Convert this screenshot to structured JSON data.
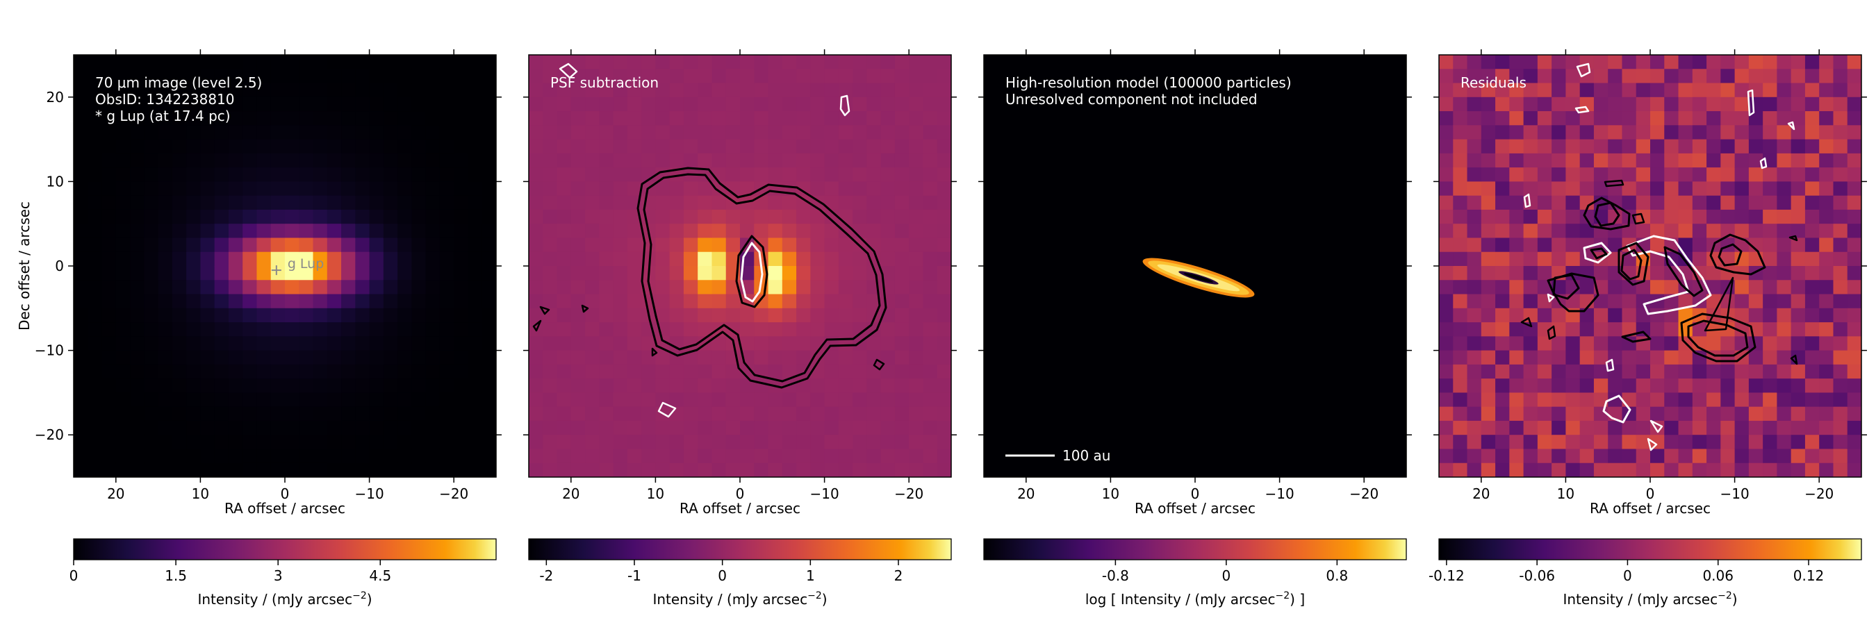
{
  "chart_data": [
    {
      "type": "heatmap",
      "annotation_lines": [
        "70 μm image (level 2.5)",
        "ObsID: 1342238810",
        "* g Lup (at 17.4 pc)"
      ],
      "star_label": "g Lup",
      "star_position": [
        1,
        -0.5
      ],
      "xlabel": "RA offset / arcsec",
      "ylabel": "Dec offset / arcsec",
      "xlim": [
        25,
        -25
      ],
      "ylim": [
        -25,
        25
      ],
      "xticks": [
        20,
        10,
        0,
        -10,
        -20
      ],
      "yticks": [
        20,
        10,
        0,
        -10,
        -20
      ],
      "colormap": "inferno",
      "colorbar": {
        "label": "Intensity / (mJy arcsec",
        "label_exp": "−2",
        "label_suffix": ")",
        "range": [
          0,
          6.2
        ],
        "ticks": [
          0,
          1.5,
          3,
          4.5
        ],
        "tick_labels": [
          "0",
          "1.5",
          "3",
          "4.5"
        ]
      }
    },
    {
      "type": "heatmap",
      "annotation_lines": [
        "PSF subtraction"
      ],
      "xlabel": "RA offset / arcsec",
      "xlim": [
        25,
        -25
      ],
      "ylim": [
        -25,
        25
      ],
      "xticks": [
        20,
        10,
        0,
        -10,
        -20
      ],
      "contours": true,
      "colormap": "inferno",
      "colorbar": {
        "label": "Intensity / (mJy arcsec",
        "label_exp": "−2",
        "label_suffix": ")",
        "range": [
          -2.2,
          2.6
        ],
        "ticks": [
          -2,
          -1,
          0,
          1,
          2
        ],
        "tick_labels": [
          "-2",
          "-1",
          "0",
          "1",
          "2"
        ]
      }
    },
    {
      "type": "heatmap",
      "annotation_lines": [
        "High-resolution model (100000 particles)",
        "Unresolved component not included"
      ],
      "scalebar_label": "100 au",
      "xlabel": "RA offset / arcsec",
      "xlim": [
        25,
        -25
      ],
      "ylim": [
        -25,
        25
      ],
      "xticks": [
        20,
        10,
        0,
        -10,
        -20
      ],
      "colormap": "inferno",
      "colorbar": {
        "label": "log [ Intensity / (mJy arcsec",
        "label_exp": "−2",
        "label_suffix": ") ]",
        "range": [
          -1.75,
          1.3
        ],
        "ticks": [
          -0.8,
          0,
          0.8
        ],
        "tick_labels": [
          "-0.8",
          "0",
          "0.8"
        ]
      }
    },
    {
      "type": "heatmap",
      "annotation_lines": [
        "Residuals"
      ],
      "xlabel": "RA offset / arcsec",
      "xlim": [
        25,
        -25
      ],
      "ylim": [
        -25,
        25
      ],
      "xticks": [
        20,
        10,
        0,
        -10,
        -20
      ],
      "contours": true,
      "colormap": "inferno",
      "colorbar": {
        "label": "Intensity / (mJy arcsec",
        "label_exp": "−2",
        "label_suffix": ")",
        "range": [
          -0.125,
          0.155
        ],
        "ticks": [
          -0.12,
          -0.06,
          0,
          0.06,
          0.12
        ],
        "tick_labels": [
          "-0.12",
          "-0.06",
          "0",
          "0.06",
          "0.12"
        ]
      }
    }
  ]
}
